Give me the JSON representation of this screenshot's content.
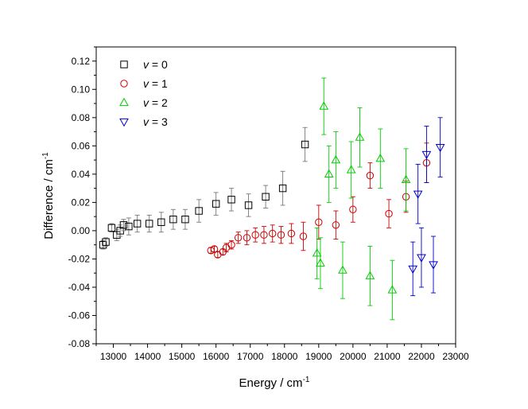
{
  "chart_data": {
    "type": "scatter",
    "xlabel": "Energy / cm",
    "xlabel_sup": "-1",
    "ylabel": "Difference / cm",
    "ylabel_sup": "-1",
    "xlim": [
      12500,
      23000
    ],
    "ylim": [
      -0.08,
      0.13
    ],
    "x_ticks": [
      13000,
      14000,
      15000,
      16000,
      17000,
      18000,
      19000,
      20000,
      21000,
      22000,
      23000
    ],
    "x_tick_labels": [
      "13000",
      "14000",
      "15000",
      "16000",
      "17000",
      "18000",
      "19000",
      "20000",
      "21000",
      "22000",
      "23000"
    ],
    "y_ticks": [
      -0.08,
      -0.06,
      -0.04,
      -0.02,
      0.0,
      0.02,
      0.04,
      0.06,
      0.08,
      0.1,
      0.12
    ],
    "y_tick_labels": [
      "-0.08",
      "-0.06",
      "-0.04",
      "-0.02",
      "0.00",
      "0.02",
      "0.04",
      "0.06",
      "0.08",
      "0.10",
      "0.12"
    ],
    "legend_position": "top-left",
    "series": [
      {
        "name": "v = 0",
        "legend_var": "v",
        "legend_eq": " = 0",
        "marker": "square",
        "color": "#000000",
        "errcolor": "#777777",
        "points": [
          [
            12700,
            -0.01,
            0.003
          ],
          [
            12780,
            -0.008,
            0.003
          ],
          [
            12950,
            0.002,
            0.003
          ],
          [
            13100,
            -0.003,
            0.004
          ],
          [
            13200,
            0.0,
            0.004
          ],
          [
            13300,
            0.004,
            0.004
          ],
          [
            13450,
            0.003,
            0.006
          ],
          [
            13700,
            0.005,
            0.006
          ],
          [
            14050,
            0.005,
            0.006
          ],
          [
            14400,
            0.006,
            0.007
          ],
          [
            14750,
            0.008,
            0.007
          ],
          [
            15100,
            0.008,
            0.007
          ],
          [
            15500,
            0.014,
            0.008
          ],
          [
            16000,
            0.019,
            0.008
          ],
          [
            16450,
            0.022,
            0.008
          ],
          [
            16950,
            0.018,
            0.008
          ],
          [
            17450,
            0.024,
            0.008
          ],
          [
            17950,
            0.03,
            0.012
          ],
          [
            18600,
            0.061,
            0.012
          ]
        ]
      },
      {
        "name": "v = 1",
        "legend_var": "v",
        "legend_eq": " = 1",
        "marker": "circle",
        "color": "#cc0000",
        "errcolor": "#cc0000",
        "points": [
          [
            15850,
            -0.014,
            0.002
          ],
          [
            15950,
            -0.013,
            0.002
          ],
          [
            16050,
            -0.017,
            0.002
          ],
          [
            16200,
            -0.015,
            0.002
          ],
          [
            16300,
            -0.012,
            0.003
          ],
          [
            16450,
            -0.01,
            0.003
          ],
          [
            16650,
            -0.005,
            0.004
          ],
          [
            16900,
            -0.005,
            0.005
          ],
          [
            17150,
            -0.003,
            0.005
          ],
          [
            17400,
            -0.003,
            0.006
          ],
          [
            17650,
            -0.002,
            0.006
          ],
          [
            17900,
            -0.003,
            0.006
          ],
          [
            18200,
            -0.002,
            0.007
          ],
          [
            18550,
            -0.004,
            0.01
          ],
          [
            19000,
            0.006,
            0.012
          ],
          [
            19500,
            0.004,
            0.01
          ],
          [
            20000,
            0.015,
            0.009
          ],
          [
            20500,
            0.039,
            0.009
          ],
          [
            21050,
            0.012,
            0.01
          ],
          [
            21550,
            0.024,
            0.011
          ],
          [
            22150,
            0.048,
            0.014
          ]
        ]
      },
      {
        "name": "v = 2",
        "legend_var": "v",
        "legend_eq": " = 2",
        "marker": "triangle-up",
        "color": "#00cc00",
        "errcolor": "#00cc00",
        "points": [
          [
            18950,
            -0.016,
            0.018
          ],
          [
            19050,
            -0.023,
            0.018
          ],
          [
            19150,
            0.088,
            0.02
          ],
          [
            19300,
            0.04,
            0.02
          ],
          [
            19500,
            0.05,
            0.02
          ],
          [
            19700,
            -0.028,
            0.02
          ],
          [
            19950,
            0.043,
            0.02
          ],
          [
            20200,
            0.066,
            0.021
          ],
          [
            20500,
            -0.032,
            0.021
          ],
          [
            20800,
            0.051,
            0.021
          ],
          [
            21150,
            -0.042,
            0.021
          ],
          [
            21550,
            0.036,
            0.022
          ]
        ]
      },
      {
        "name": "v = 3",
        "legend_var": "v",
        "legend_eq": " = 3",
        "marker": "triangle-down",
        "color": "#0000cc",
        "errcolor": "#0000cc",
        "points": [
          [
            21750,
            -0.027,
            0.019
          ],
          [
            21900,
            0.026,
            0.021
          ],
          [
            22000,
            -0.019,
            0.021
          ],
          [
            22150,
            0.054,
            0.02
          ],
          [
            22350,
            -0.024,
            0.02
          ],
          [
            22550,
            0.059,
            0.021
          ]
        ]
      }
    ]
  }
}
